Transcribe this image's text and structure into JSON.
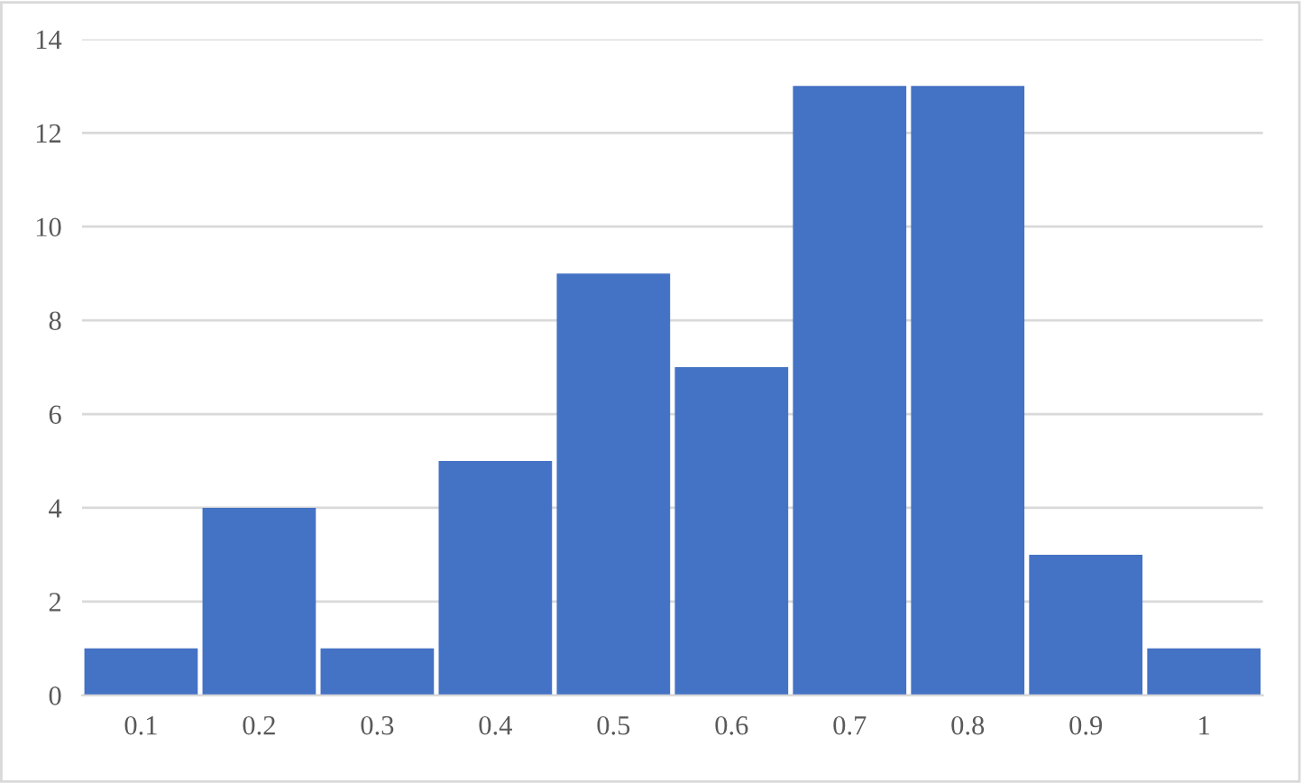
{
  "chart_data": {
    "type": "bar",
    "categories": [
      "0.1",
      "0.2",
      "0.3",
      "0.4",
      "0.5",
      "0.6",
      "0.7",
      "0.8",
      "0.9",
      "1"
    ],
    "values": [
      1,
      4,
      1,
      5,
      9,
      7,
      13,
      13,
      3,
      1
    ],
    "color": "#4472c4",
    "ylim": [
      0,
      14
    ],
    "yticks": [
      0,
      2,
      4,
      6,
      8,
      10,
      12,
      14
    ],
    "grid": "y",
    "legend": false
  }
}
